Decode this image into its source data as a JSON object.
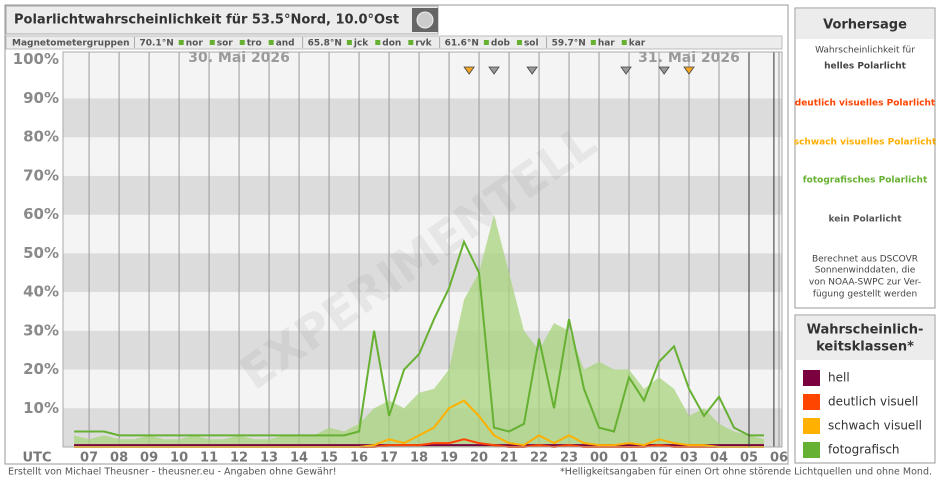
{
  "header": {
    "title": "Polarlichtwahrscheinlichkeit für 53.5°Nord, 10.0°Ost",
    "magnetometer_label": "Magnetometergruppen",
    "groups": [
      {
        "lat": "70.1°N",
        "stations": [
          "nor",
          "sor",
          "tro",
          "and"
        ]
      },
      {
        "lat": "65.8°N",
        "stations": [
          "jck",
          "don",
          "rvk"
        ]
      },
      {
        "lat": "61.6°N",
        "stations": [
          "dob",
          "sol"
        ]
      },
      {
        "lat": "59.7°N",
        "stations": [
          "har",
          "kar"
        ]
      }
    ]
  },
  "chart_data": {
    "type": "line",
    "watermark": "EXPERIMENTELL",
    "x_axis_label": "UTC",
    "dates": [
      {
        "value": 12,
        "label": "30. Mai 2026"
      },
      {
        "value": 27,
        "label": "31. Mai 2026"
      }
    ],
    "x": [
      6.5,
      7,
      7.5,
      8,
      8.5,
      9,
      9.5,
      10,
      10.5,
      11,
      11.5,
      12,
      12.5,
      13,
      13.5,
      14,
      14.5,
      15,
      15.5,
      16,
      16.5,
      17,
      17.5,
      18,
      18.5,
      19,
      19.5,
      20,
      20.5,
      21,
      21.5,
      22,
      22.5,
      23,
      23.5,
      24,
      24.5,
      25,
      25.5,
      26,
      26.5,
      27,
      27.5,
      28,
      28.5,
      29,
      29.5
    ],
    "xlim": [
      6.13,
      30.1
    ],
    "xticks": [
      {
        "value": 7,
        "label": "07"
      },
      {
        "value": 8,
        "label": "08"
      },
      {
        "value": 9,
        "label": "09"
      },
      10,
      11,
      12,
      13,
      14,
      15,
      16,
      17,
      18,
      19,
      20,
      21,
      22,
      23,
      {
        "value": 24,
        "label": "00"
      },
      {
        "value": 25,
        "label": "01"
      },
      {
        "value": 26,
        "label": "02"
      },
      {
        "value": 27,
        "label": "03"
      },
      {
        "value": 28,
        "label": "04"
      },
      {
        "value": 29,
        "label": "05"
      },
      {
        "value": 30,
        "label": "06"
      }
    ],
    "ylim": [
      0,
      102
    ],
    "yticks": [
      {
        "value": 10,
        "label": "10%"
      },
      {
        "value": 20,
        "label": "20%"
      },
      {
        "value": 30,
        "label": "30%"
      },
      {
        "value": 40,
        "label": "40%"
      },
      {
        "value": 50,
        "label": "50%"
      },
      {
        "value": 60,
        "label": "60%"
      },
      {
        "value": 70,
        "label": "70%"
      },
      {
        "value": 80,
        "label": "80%"
      },
      {
        "value": 90,
        "label": "90%"
      },
      {
        "value": 100,
        "label": "100%"
      }
    ],
    "grid": true,
    "area": {
      "color": "#a8d47c",
      "values": [
        3,
        2,
        3,
        2,
        2,
        3,
        2,
        2,
        3,
        2,
        2,
        3,
        2,
        2,
        3,
        3,
        3,
        5,
        4,
        6,
        10,
        12,
        10,
        14,
        15,
        20,
        38,
        45,
        60,
        45,
        30,
        25,
        32,
        30,
        20,
        22,
        20,
        20,
        15,
        18,
        15,
        8,
        10,
        6,
        4,
        3,
        2
      ]
    },
    "series": [
      {
        "name": "hell",
        "color": "#7b0040",
        "values": [
          0.5,
          0.5,
          0.5,
          0.5,
          0.5,
          0.5,
          0.5,
          0.5,
          0.5,
          0.5,
          0.5,
          0.5,
          0.5,
          0.5,
          0.5,
          0.5,
          0.5,
          0.5,
          0.5,
          0.5,
          0.5,
          0.5,
          0.5,
          0.5,
          0.5,
          0.5,
          0.5,
          0.5,
          0.5,
          0.5,
          0.5,
          0.5,
          0.5,
          0.5,
          0.5,
          0.5,
          0.5,
          0.5,
          0.5,
          0.5,
          0.5,
          0.5,
          0.5,
          0.5,
          0.5,
          0.5,
          0.5
        ]
      },
      {
        "name": "deutlich visuell",
        "color": "#ff4500",
        "values": [
          0,
          0,
          0,
          0,
          0,
          0,
          0,
          0,
          0,
          0,
          0,
          0,
          0,
          0,
          0,
          0,
          0,
          0,
          0,
          0,
          0,
          0.5,
          0.5,
          0.5,
          1,
          1,
          2,
          1,
          0.5,
          0,
          0,
          0.5,
          0,
          0.5,
          0,
          0,
          0,
          0,
          0,
          0.5,
          0,
          0,
          0,
          0,
          0,
          0,
          0
        ]
      },
      {
        "name": "schwach visuell",
        "color": "#ffb000",
        "values": [
          0,
          0,
          0,
          0,
          0,
          0,
          0,
          0,
          0,
          0,
          0,
          0,
          0,
          0,
          0,
          0,
          0,
          0,
          0,
          0,
          0.5,
          2,
          1,
          3,
          5,
          10,
          12,
          8,
          3,
          1,
          0.5,
          3,
          1,
          3,
          1,
          0.5,
          0.5,
          1,
          0.5,
          2,
          1,
          0.5,
          0.5,
          0,
          0,
          0,
          0
        ]
      },
      {
        "name": "fotografisch",
        "color": "#66b032",
        "values": [
          4,
          4,
          4,
          3,
          3,
          3,
          3,
          3,
          3,
          3,
          3,
          3,
          3,
          3,
          3,
          3,
          3,
          3,
          3,
          4,
          30,
          8,
          20,
          24,
          33,
          41,
          53,
          45,
          5,
          4,
          6,
          28,
          10,
          33,
          15,
          5,
          4,
          18,
          12,
          22,
          26,
          15,
          8,
          13,
          5,
          3,
          3
        ]
      }
    ],
    "markers": [
      {
        "x": 19.67,
        "color": "#f5a623"
      },
      {
        "x": 20.5,
        "color": "#999999"
      },
      {
        "x": 21.77,
        "color": "#999999"
      },
      {
        "x": 24.9,
        "color": "#999999"
      },
      {
        "x": 26.17,
        "color": "#999999"
      },
      {
        "x": 27,
        "color": "#f5a623"
      }
    ],
    "vlines": [
      29,
      29.83
    ]
  },
  "sidebar": {
    "title": "Vorhersage",
    "intro": "Wahrscheinlichkeit für",
    "classes": [
      "helles Polarlicht",
      "deutlich visuelles Polarlicht",
      "schwach visuelles Polarlicht",
      "fotografisches Polarlicht",
      "kein Polarlicht"
    ],
    "note": [
      "Berechnet aus DSCOVR",
      "Sonnenwinddaten, die",
      "von NOAA-SWPC zur Ver-",
      "fügung gestellt werden"
    ]
  },
  "legend": {
    "title": [
      "Wahrscheinlich-",
      "keitsklassen*"
    ]
  },
  "footer": {
    "credit": "Erstellt von Michael Theusner - theusner.eu - Angaben ohne Gewähr!",
    "note": "*Helligkeitsangaben für einen Ort ohne störende Lichtquellen und ohne Mond."
  }
}
